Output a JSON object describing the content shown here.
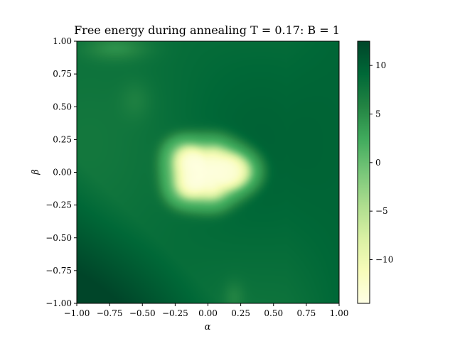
{
  "chart_data": {
    "type": "heatmap",
    "title": "Free energy during annealing T = 0.17:  B = 1",
    "xlabel": "α",
    "ylabel": "β",
    "xlim": [
      -1.0,
      1.0
    ],
    "ylim": [
      -1.0,
      1.0
    ],
    "x_ticks": [
      "−1.00",
      "−0.75",
      "−0.50",
      "−0.25",
      "0.00",
      "0.25",
      "0.50",
      "0.75",
      "1.00"
    ],
    "y_ticks": [
      "1.00",
      "0.75",
      "0.50",
      "0.25",
      "0.00",
      "−0.25",
      "−0.50",
      "−0.75",
      "−1.00"
    ],
    "x_tick_values": [
      -1.0,
      -0.75,
      -0.5,
      -0.25,
      0.0,
      0.25,
      0.5,
      0.75,
      1.0
    ],
    "y_tick_values": [
      1.0,
      0.75,
      0.5,
      0.25,
      0.0,
      -0.25,
      -0.5,
      -0.75,
      -1.0
    ],
    "colorbar": {
      "range": [
        -14.5,
        12.5
      ],
      "ticks": [
        "10",
        "5",
        "0",
        "−5",
        "−10"
      ],
      "tick_values": [
        10,
        5,
        0,
        -5,
        -10
      ],
      "colormap": "YlGn",
      "colors": [
        "#ffffe5",
        "#f7fcb9",
        "#d9f0a3",
        "#addd8e",
        "#78c679",
        "#41ab5d",
        "#238443",
        "#006837",
        "#004529"
      ]
    },
    "grid": false,
    "surface_description": {
      "background_level": 8.5,
      "center_minimum": -14.5,
      "minimum_location": [
        0.0,
        0.0
      ]
    }
  }
}
